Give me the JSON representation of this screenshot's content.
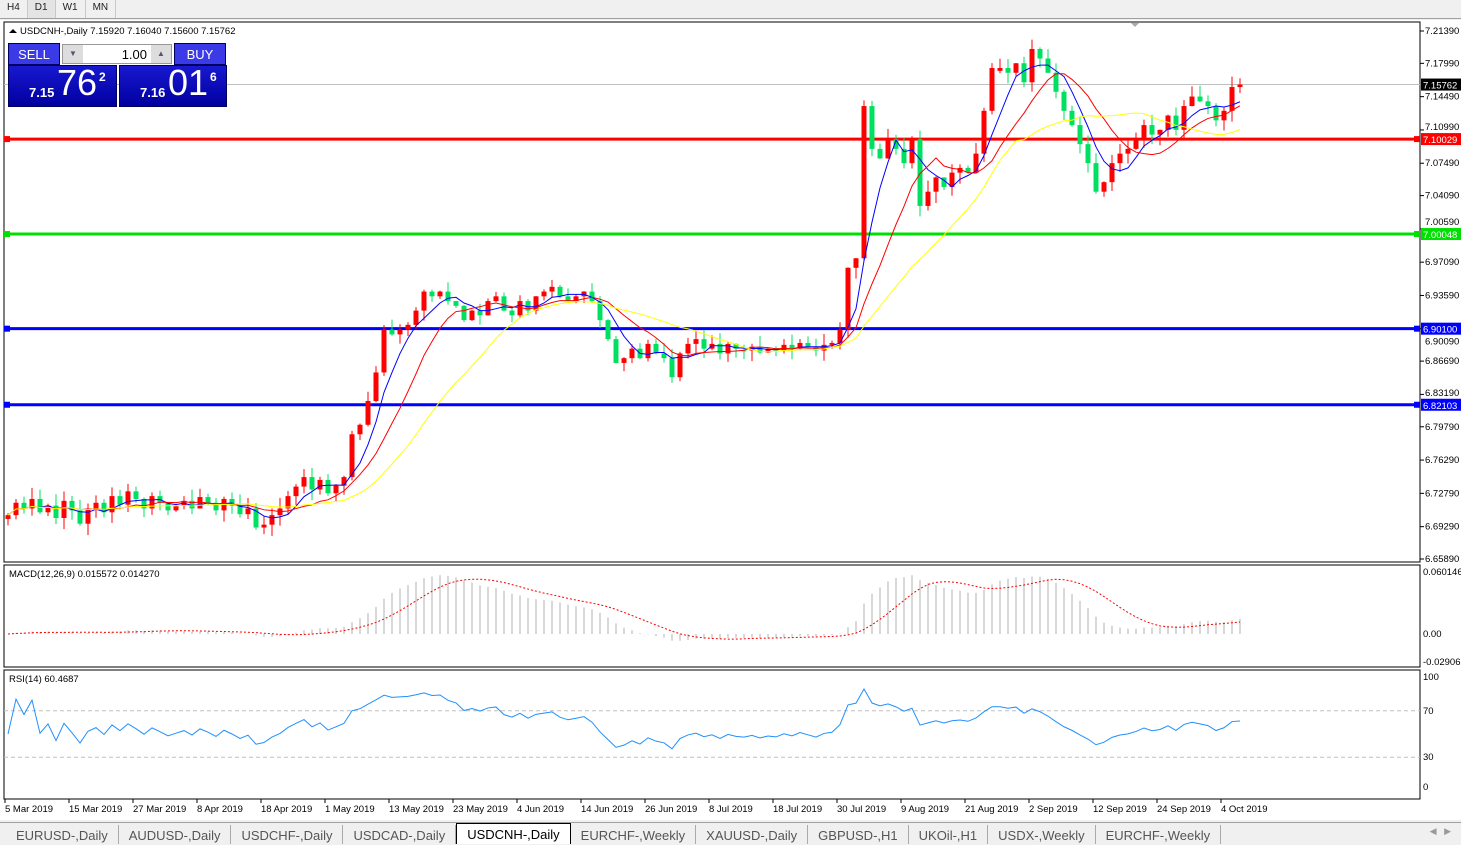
{
  "timeframes": [
    "H4",
    "D1",
    "W1",
    "MN"
  ],
  "active_timeframe": "D1",
  "chart": {
    "header": "USDCNH-,Daily  7.15920 7.16040 7.15600 7.15762",
    "symbol": "USDCNH-",
    "period": "Daily",
    "open": "7.15920",
    "high": "7.16040",
    "low": "7.15600",
    "close": "7.15762"
  },
  "trade": {
    "sell_label": "SELL",
    "buy_label": "BUY",
    "lot": "1.00",
    "sell_prefix": "7.15",
    "sell_big": "76",
    "sell_sup": "2",
    "buy_prefix": "7.16",
    "buy_big": "01",
    "buy_sup": "6"
  },
  "price_axis": [
    "7.21390",
    "7.17990",
    "7.14490",
    "7.10990",
    "7.07490",
    "7.04090",
    "7.00590",
    "6.97090",
    "6.93590",
    "6.90090",
    "6.86690",
    "6.83190",
    "6.79790",
    "6.76290",
    "6.72790",
    "6.69290",
    "6.65890"
  ],
  "current_price": "7.15762",
  "levels": [
    {
      "price": "7.10029",
      "color": "#ff0000"
    },
    {
      "price": "7.00048",
      "color": "#00e000"
    },
    {
      "price": "6.90100",
      "color": "#0000ff"
    },
    {
      "price": "6.82103",
      "color": "#0000ff"
    }
  ],
  "macd": {
    "label": "MACD(12,26,9) 0.015572 0.014270",
    "axis": [
      "0.060146",
      "0.00",
      "-0.02906"
    ]
  },
  "rsi": {
    "label": "RSI(14) 60.4687",
    "axis": [
      "100",
      "70",
      "30",
      "0"
    ]
  },
  "date_labels": [
    "5 Mar 2019",
    "15 Mar 2019",
    "27 Mar 2019",
    "8 Apr 2019",
    "18 Apr 2019",
    "1 May 2019",
    "13 May 2019",
    "23 May 2019",
    "4 Jun 2019",
    "14 Jun 2019",
    "26 Jun 2019",
    "8 Jul 2019",
    "18 Jul 2019",
    "30 Jul 2019",
    "9 Aug 2019",
    "21 Aug 2019",
    "2 Sep 2019",
    "12 Sep 2019",
    "24 Sep 2019",
    "4 Oct 2019"
  ],
  "colors": {
    "bull": "#ff0000",
    "bear": "#00e060",
    "ma_fast": "#0000ff",
    "ma_mid": "#ff0000",
    "ma_slow": "#ffff00"
  },
  "chart_data": {
    "type": "candlestick",
    "approx_closes": [
      6.705,
      6.718,
      6.712,
      6.722,
      6.708,
      6.715,
      6.702,
      6.72,
      6.71,
      6.696,
      6.712,
      6.718,
      6.708,
      6.725,
      6.716,
      6.73,
      6.722,
      6.712,
      6.725,
      6.718,
      6.71,
      6.715,
      6.72,
      6.712,
      6.724,
      6.718,
      6.71,
      6.722,
      6.715,
      6.706,
      6.712,
      6.692,
      6.695,
      6.705,
      6.712,
      6.725,
      6.735,
      6.745,
      6.732,
      6.742,
      6.728,
      6.736,
      6.745,
      6.79,
      6.8,
      6.825,
      6.855,
      6.9,
      6.895,
      6.9,
      6.905,
      6.92,
      6.94,
      6.935,
      6.94,
      6.93,
      6.925,
      6.91,
      6.92,
      6.915,
      6.93,
      6.935,
      6.92,
      6.915,
      6.93,
      6.92,
      6.935,
      6.94,
      6.945,
      6.935,
      6.93,
      6.935,
      6.94,
      6.93,
      6.91,
      6.89,
      6.865,
      6.87,
      6.88,
      6.87,
      6.885,
      6.875,
      6.87,
      6.85,
      6.875,
      6.885,
      6.89,
      6.88,
      6.885,
      6.875,
      6.885,
      6.88,
      6.878,
      6.882,
      6.876,
      6.88,
      6.878,
      6.884,
      6.88,
      6.886,
      6.882,
      6.878,
      6.884,
      6.886,
      6.9,
      6.965,
      6.975,
      7.135,
      7.09,
      7.08,
      7.1,
      7.09,
      7.075,
      7.1,
      7.03,
      7.045,
      7.06,
      7.05,
      7.065,
      7.07,
      7.065,
      7.085,
      7.13,
      7.175,
      7.175,
      7.17,
      7.18,
      7.16,
      7.195,
      7.185,
      7.17,
      7.15,
      7.13,
      7.115,
      7.095,
      7.075,
      7.045,
      7.055,
      7.075,
      7.085,
      7.09,
      7.1,
      7.115,
      7.105,
      7.11,
      7.125,
      7.11,
      7.135,
      7.145,
      7.14,
      7.135,
      7.12,
      7.13,
      7.155,
      7.15762
    ],
    "ylim": [
      6.6589,
      7.2139
    ]
  },
  "tabs": [
    "EURUSD-,Daily",
    "AUDUSD-,Daily",
    "USDCHF-,Daily",
    "USDCAD-,Daily",
    "USDCNH-,Daily",
    "EURCHF-,Weekly",
    "XAUUSD-,Daily",
    "GBPUSD-,H1",
    "UKOil-,H1",
    "USDX-,Weekly",
    "EURCHF-,Weekly"
  ],
  "active_tab": "USDCNH-,Daily"
}
